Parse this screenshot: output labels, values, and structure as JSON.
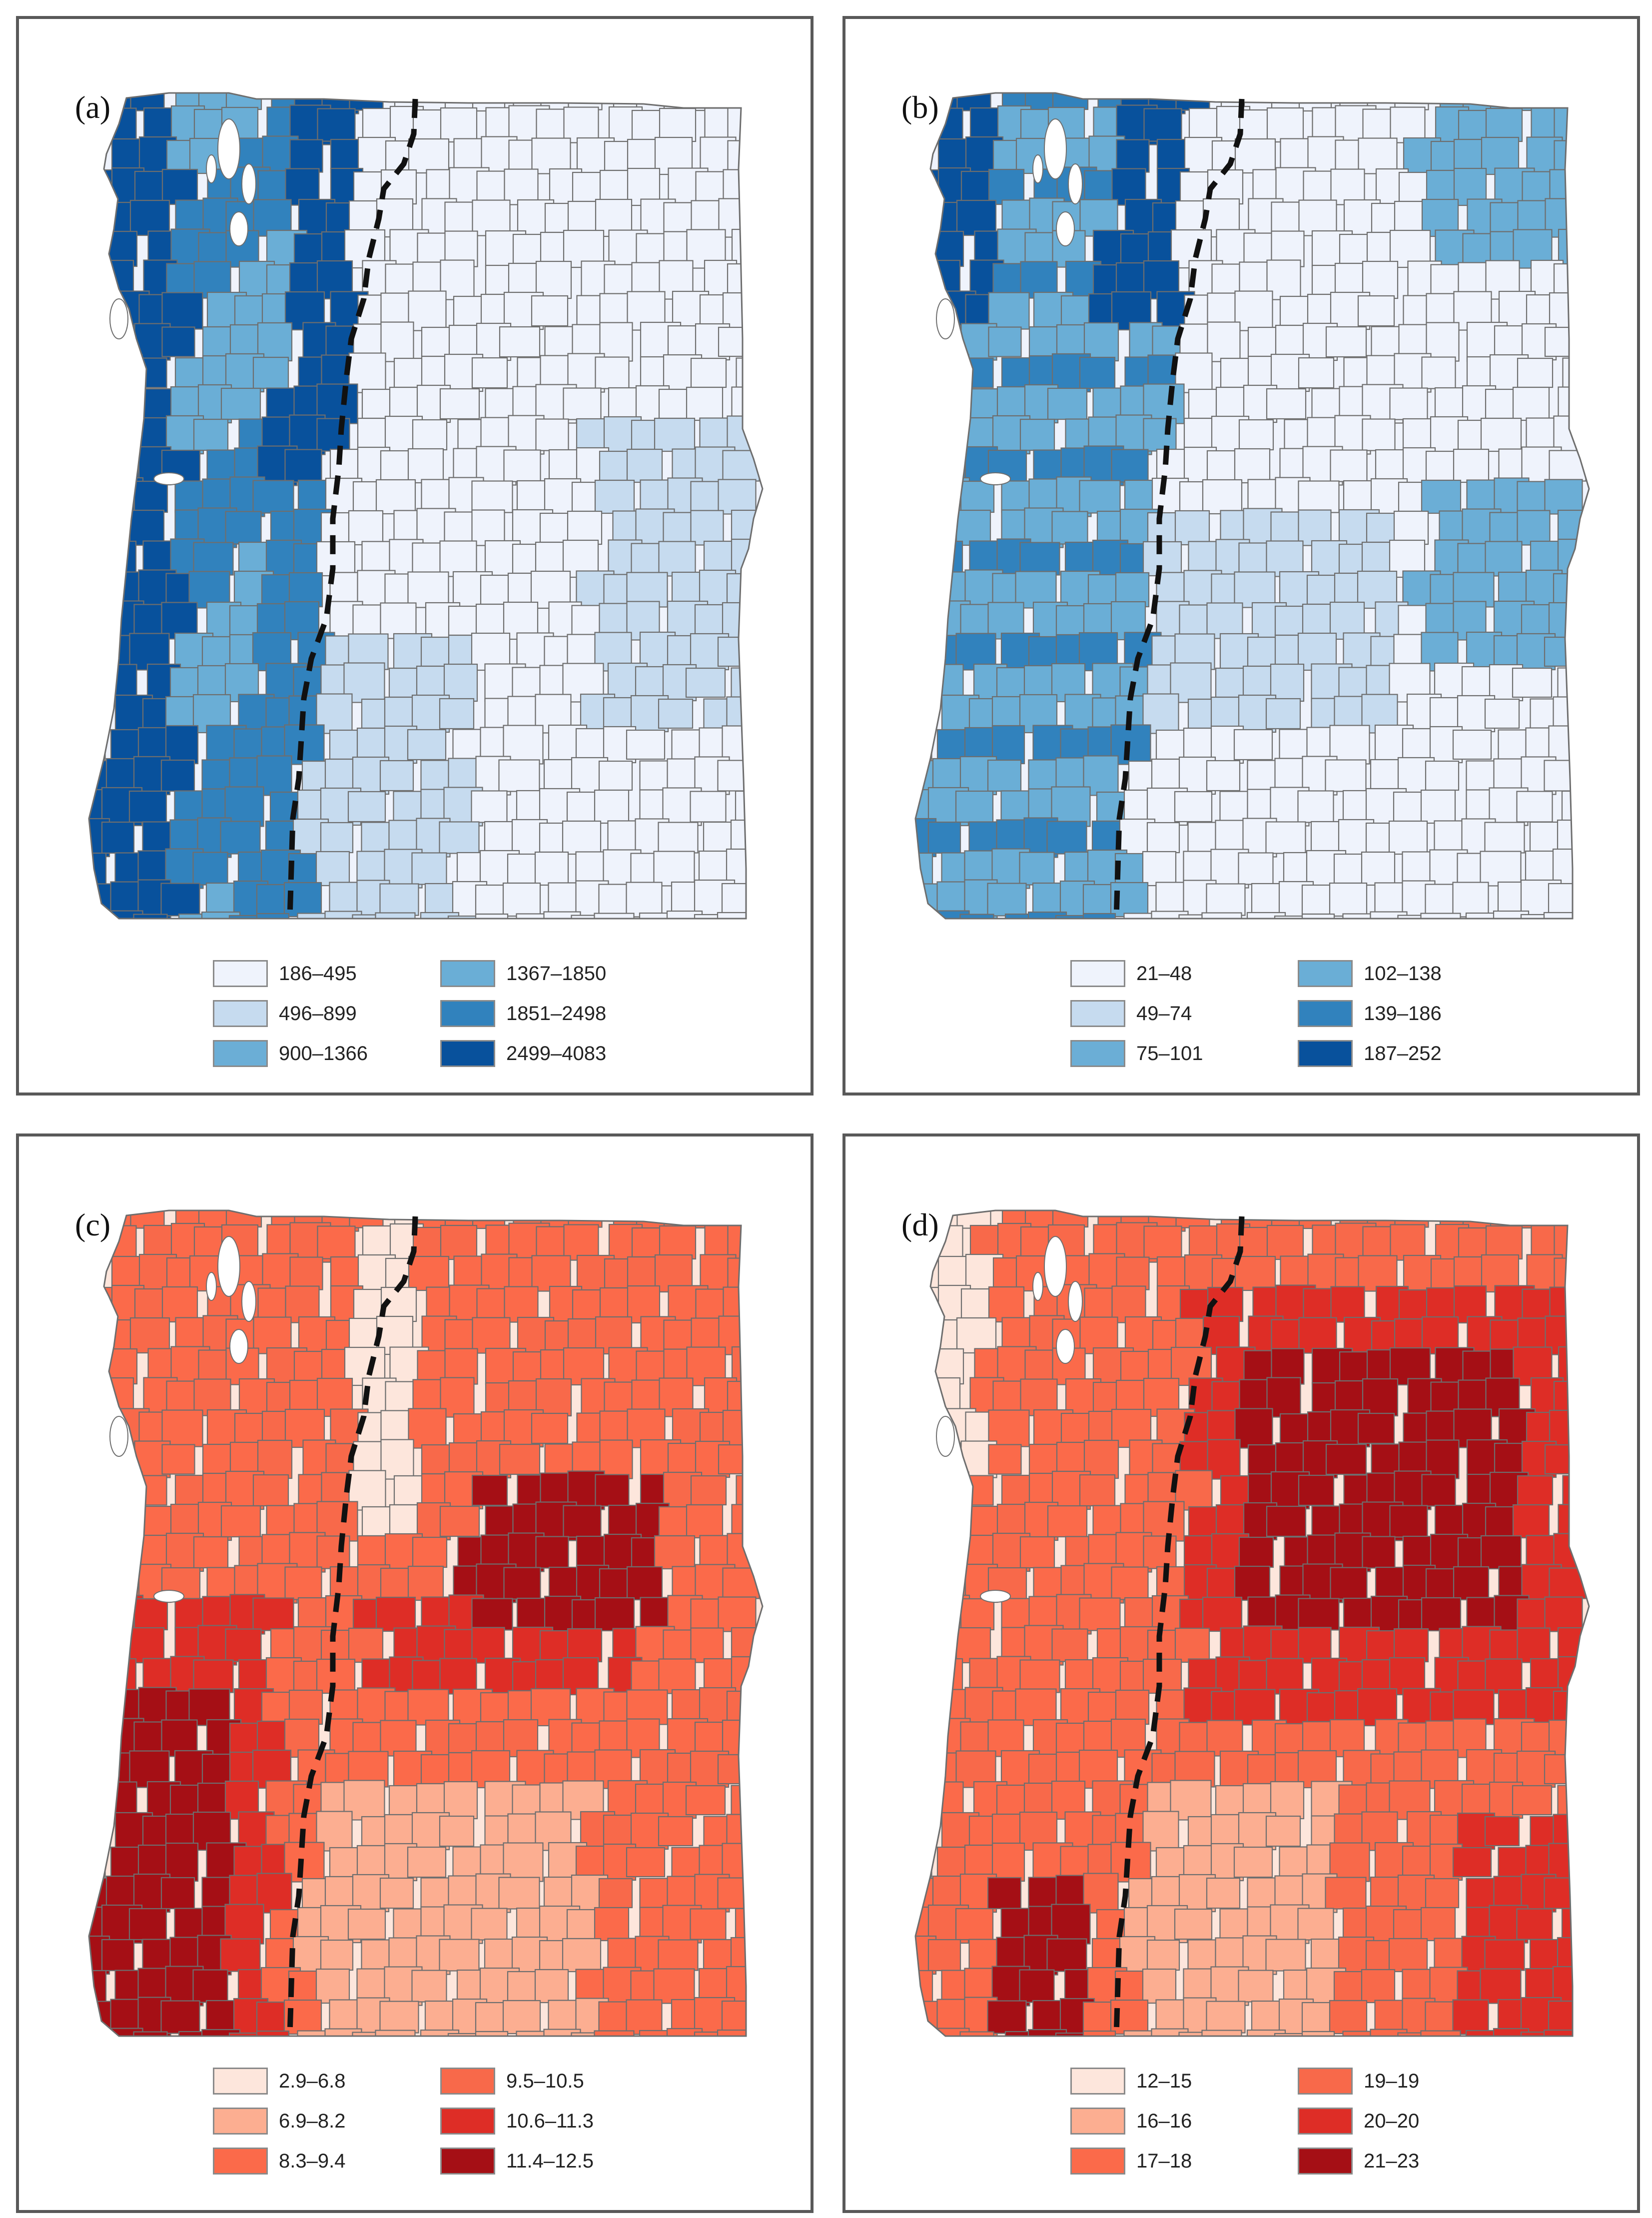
{
  "panels": [
    {
      "label": "(a)",
      "scheme": "blues",
      "legend": [
        {
          "range": "186–495",
          "color": "#eff3fc"
        },
        {
          "range": "496–899",
          "color": "#c6dbef"
        },
        {
          "range": "900–1366",
          "color": "#6baed6"
        },
        {
          "range": "1367–1850",
          "color": "#6aaed6"
        },
        {
          "range": "1851–2498",
          "color": "#3182bd"
        },
        {
          "range": "2499–4083",
          "color": "#08519c"
        }
      ]
    },
    {
      "label": "(b)",
      "scheme": "blues",
      "legend": [
        {
          "range": "21–48",
          "color": "#eff3fc"
        },
        {
          "range": "49–74",
          "color": "#c6dbef"
        },
        {
          "range": "75–101",
          "color": "#6baed6"
        },
        {
          "range": "102–138",
          "color": "#6aaed6"
        },
        {
          "range": "139–186",
          "color": "#3182bd"
        },
        {
          "range": "187–252",
          "color": "#08519c"
        }
      ]
    },
    {
      "label": "(c)",
      "scheme": "reds",
      "legend": [
        {
          "range": "2.9–6.8",
          "color": "#fde6dc"
        },
        {
          "range": "6.9–8.2",
          "color": "#fcae91"
        },
        {
          "range": "8.3–9.4",
          "color": "#fb6a4a"
        },
        {
          "range": "9.5–10.5",
          "color": "#f8694a"
        },
        {
          "range": "10.6–11.3",
          "color": "#de2d26"
        },
        {
          "range": "11.4–12.5",
          "color": "#a50f15"
        }
      ]
    },
    {
      "label": "(d)",
      "scheme": "reds",
      "legend": [
        {
          "range": "12–15",
          "color": "#fde6dc"
        },
        {
          "range": "16–16",
          "color": "#fcae91"
        },
        {
          "range": "17–18",
          "color": "#fb6a4a"
        },
        {
          "range": "19–19",
          "color": "#f8694a"
        },
        {
          "range": "20–20",
          "color": "#de2d26"
        },
        {
          "range": "21–23",
          "color": "#a50f15"
        }
      ]
    }
  ]
}
